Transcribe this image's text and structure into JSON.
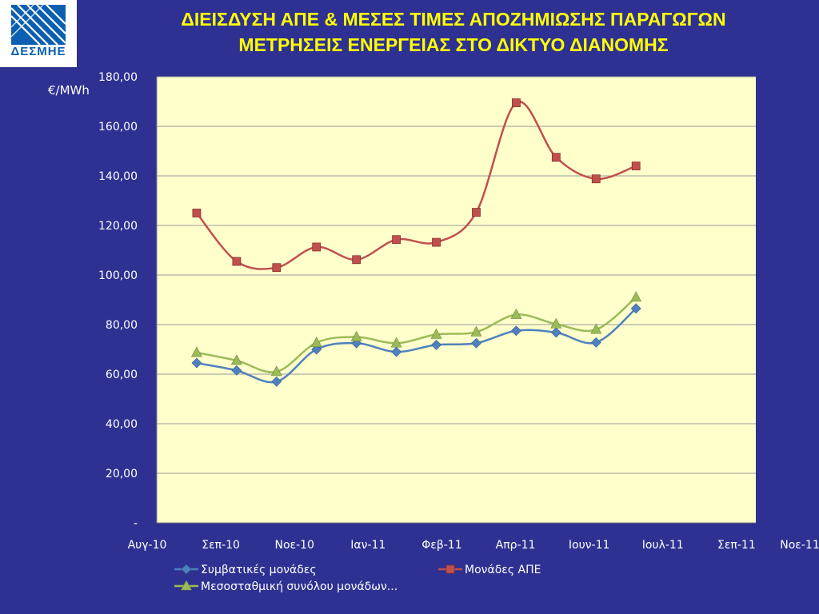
{
  "logo": {
    "text": "ΔΕΣΜΗΕ",
    "icon": "desmie-logo-icon"
  },
  "title_lines": [
    "ΔΙΕΙΣΔΥΣΗ ΑΠΕ & ΜΕΣΕΣ ΤΙΜΕΣ ΑΠΟΖΗΜΙΩΣΗΣ ΠΑΡΑΓΩΓΩΝ",
    "ΜΕΤΡΗΣΕΙΣ ΕΝΕΡΓΕΙΑΣ ΣΤΟ ΔΙΚΤΥΟ ΔΙΑΝΟΜΗΣ"
  ],
  "colors": {
    "background": "#2e3192",
    "plot_area": "#ffffcc",
    "title": "#ffff00",
    "gridline": "#9a9a9a"
  },
  "chart_data": {
    "type": "line",
    "ylabel": "€/MWh",
    "ylim": [
      0,
      180
    ],
    "yticks": [
      0,
      20,
      40,
      60,
      80,
      100,
      120,
      140,
      160,
      180
    ],
    "ytick_labels": [
      "-",
      "20,00",
      "40,00",
      "60,00",
      "80,00",
      "100,00",
      "120,00",
      "140,00",
      "160,00",
      "180,00"
    ],
    "x_axis": {
      "start": "2010-08",
      "end": "2011-11",
      "tick_labels": [
        "Αυγ-10",
        "Σεπ-10",
        "Νοε-10",
        "Ιαν-11",
        "Φεβ-11",
        "Απρ-11",
        "Ιουν-11",
        "Ιουλ-11",
        "Σεπ-11",
        "Νοε-11"
      ]
    },
    "x": [
      "2010-09",
      "2010-10",
      "2010-11",
      "2010-12",
      "2011-01",
      "2011-02",
      "2011-03",
      "2011-04",
      "2011-05",
      "2011-06",
      "2011-07",
      "2011-08"
    ],
    "grid": true,
    "legend_position": "bottom",
    "series": [
      {
        "name": "Συμβατικές μονάδες",
        "color": "#4f81bd",
        "marker": "diamond",
        "values": [
          64.5,
          61.5,
          57,
          70,
          72.5,
          69,
          71.8,
          72.5,
          77.5,
          76.8,
          72.8,
          86.5
        ]
      },
      {
        "name": "Μονάδες ΑΠΕ",
        "color": "#c0504d",
        "marker": "square",
        "values": [
          125,
          105.5,
          103,
          111.3,
          106.2,
          114.3,
          113.2,
          125.3,
          169.5,
          147.5,
          138.8,
          144
        ]
      },
      {
        "name": "Μεσοσταθμική συνόλου μονάδων...",
        "color": "#9bbb59",
        "marker": "triangle",
        "values": [
          68.7,
          65.5,
          61,
          72.7,
          75,
          72.5,
          76,
          77,
          84,
          80.2,
          78,
          91
        ]
      }
    ]
  }
}
